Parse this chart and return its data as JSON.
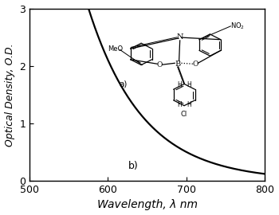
{
  "xlim": [
    500,
    800
  ],
  "ylim": [
    0,
    3
  ],
  "xticks": [
    500,
    600,
    700,
    800
  ],
  "yticks": [
    0,
    1,
    2,
    3
  ],
  "xlabel": "Wavelength, λ nm",
  "ylabel": "Optical Density, O.D.",
  "label_b": "b)",
  "curve_color": "#000000",
  "background_color": "#ffffff",
  "line_width": 1.6
}
